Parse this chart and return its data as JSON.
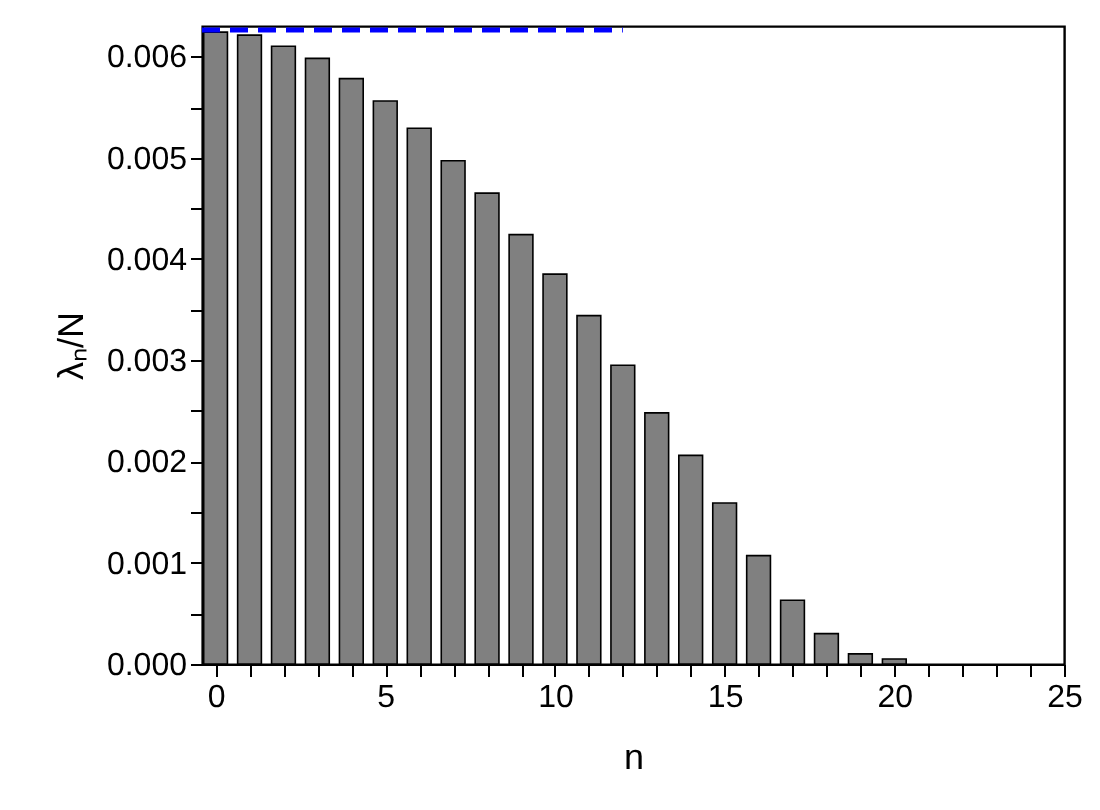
{
  "chart_data": {
    "type": "bar",
    "xlabel": "n",
    "ylabel": "λₙ/N",
    "x": [
      0,
      1,
      2,
      3,
      4,
      5,
      6,
      7,
      8,
      9,
      10,
      11,
      12,
      13,
      14,
      15,
      16,
      17,
      18,
      19,
      20
    ],
    "series": [
      {
        "color": "#808080",
        "values": [
          0.00624,
          0.00621,
          0.0061,
          0.00598,
          0.00578,
          0.00556,
          0.00529,
          0.00497,
          0.00465,
          0.00424,
          0.00385,
          0.00344,
          0.00295,
          0.00248,
          0.00206,
          0.00159,
          0.00107,
          0.00063,
          0.0003,
          0.0001,
          5e-05
        ]
      },
      {
        "type": "line",
        "color": "#0000ff",
        "line_style": "dashed",
        "x": [
          -0.4,
          12
        ],
        "values": [
          0.00626,
          0.00626
        ]
      }
    ],
    "xlim": [
      -0.4,
      25
    ],
    "ylim": [
      0,
      0.0063
    ],
    "xticks": [
      0,
      {
        "value": 1,
        "label": null
      },
      {
        "value": 2,
        "label": null
      },
      {
        "value": 3,
        "label": null
      },
      {
        "value": 4,
        "label": null
      },
      5,
      {
        "value": 6,
        "label": null
      },
      {
        "value": 7,
        "label": null
      },
      {
        "value": 8,
        "label": null
      },
      {
        "value": 9,
        "label": null
      },
      10,
      {
        "value": 11,
        "label": null
      },
      {
        "value": 12,
        "label": null
      },
      {
        "value": 13,
        "label": null
      },
      {
        "value": 14,
        "label": null
      },
      15,
      {
        "value": 16,
        "label": null
      },
      {
        "value": 17,
        "label": null
      },
      {
        "value": 18,
        "label": null
      },
      {
        "value": 19,
        "label": null
      },
      20,
      {
        "value": 21,
        "label": null
      },
      {
        "value": 22,
        "label": null
      },
      {
        "value": 23,
        "label": null
      },
      {
        "value": 24,
        "label": null
      },
      25
    ],
    "yticks": [
      {
        "value": 0,
        "label": "0.000"
      },
      {
        "value": 0.0005,
        "label": null
      },
      {
        "value": 0.001,
        "label": "0.001"
      },
      {
        "value": 0.0015,
        "label": null
      },
      {
        "value": 0.002,
        "label": "0.002"
      },
      {
        "value": 0.0025,
        "label": null
      },
      {
        "value": 0.003,
        "label": "0.003"
      },
      {
        "value": 0.0035,
        "label": null
      },
      {
        "value": 0.004,
        "label": "0.004"
      },
      {
        "value": 0.0045,
        "label": null
      },
      {
        "value": 0.005,
        "label": "0.005"
      },
      {
        "value": 0.0055,
        "label": null
      },
      {
        "value": 0.006,
        "label": "0.006"
      }
    ],
    "grid": false
  }
}
